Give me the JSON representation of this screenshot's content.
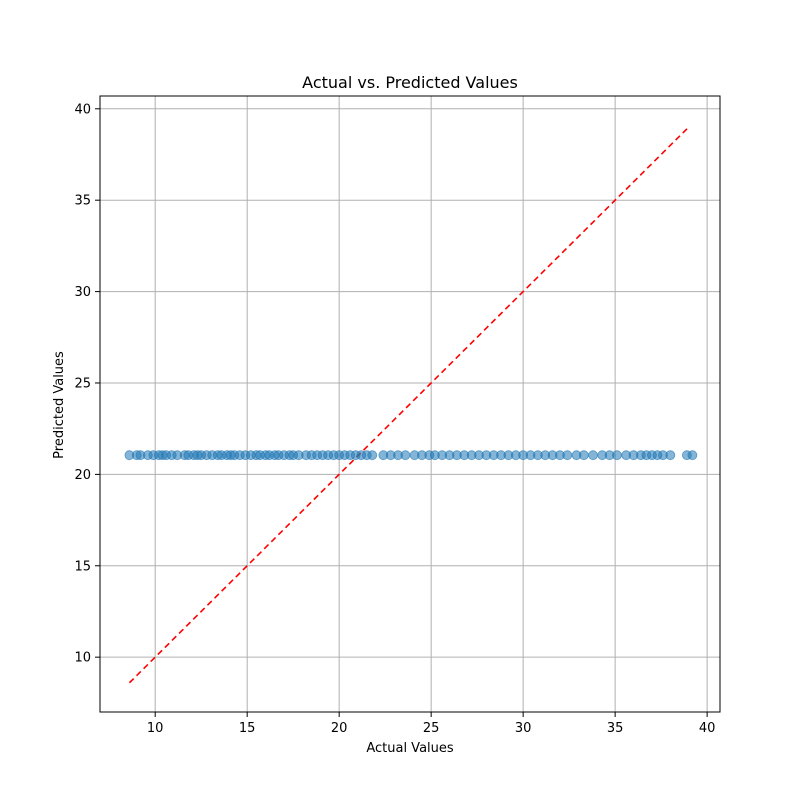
{
  "chart_data": {
    "type": "scatter",
    "title": "Actual vs. Predicted Values",
    "xlabel": "Actual Values",
    "ylabel": "Predicted Values",
    "xlim": [
      7.0,
      40.7
    ],
    "ylim": [
      7.0,
      40.7
    ],
    "xticks": [
      10,
      15,
      20,
      25,
      30,
      35,
      40
    ],
    "yticks": [
      10,
      15,
      20,
      25,
      30,
      35,
      40
    ],
    "grid": true,
    "point_color": "#1f77b4",
    "point_alpha": 0.55,
    "reference_line": {
      "x": [
        8.6,
        39.0
      ],
      "y": [
        8.6,
        39.0
      ],
      "color": "#ff0000",
      "style": "dashed"
    },
    "points": {
      "x": [
        8.6,
        9.0,
        9.2,
        9.6,
        9.9,
        10.2,
        10.4,
        10.6,
        10.9,
        11.2,
        11.6,
        11.8,
        12.1,
        12.3,
        12.5,
        12.8,
        13.1,
        13.4,
        13.6,
        13.9,
        14.1,
        14.3,
        14.6,
        14.9,
        15.2,
        15.5,
        15.7,
        16.0,
        16.2,
        16.5,
        16.7,
        17.0,
        17.3,
        17.5,
        17.8,
        18.2,
        18.5,
        18.8,
        19.1,
        19.4,
        19.7,
        20.0,
        20.3,
        20.6,
        20.9,
        21.2,
        21.5,
        21.8,
        22.4,
        22.8,
        23.2,
        23.6,
        24.1,
        24.5,
        24.9,
        25.2,
        25.6,
        26.0,
        26.4,
        26.8,
        27.2,
        27.6,
        28.0,
        28.4,
        28.8,
        29.2,
        29.6,
        30.0,
        30.4,
        30.8,
        31.2,
        31.6,
        32.0,
        32.4,
        32.9,
        33.3,
        33.8,
        34.3,
        34.7,
        35.1,
        35.6,
        36.0,
        36.4,
        36.7,
        37.0,
        37.3,
        37.6,
        38.0,
        38.9,
        39.2
      ],
      "y": [
        21.05,
        21.05,
        21.05,
        21.05,
        21.05,
        21.05,
        21.05,
        21.05,
        21.05,
        21.05,
        21.05,
        21.05,
        21.05,
        21.05,
        21.05,
        21.05,
        21.05,
        21.05,
        21.05,
        21.05,
        21.05,
        21.05,
        21.05,
        21.05,
        21.05,
        21.05,
        21.05,
        21.05,
        21.05,
        21.05,
        21.05,
        21.05,
        21.05,
        21.05,
        21.05,
        21.05,
        21.05,
        21.05,
        21.05,
        21.05,
        21.05,
        21.05,
        21.05,
        21.05,
        21.05,
        21.05,
        21.05,
        21.05,
        21.05,
        21.05,
        21.05,
        21.05,
        21.05,
        21.05,
        21.05,
        21.05,
        21.05,
        21.05,
        21.05,
        21.05,
        21.05,
        21.05,
        21.05,
        21.05,
        21.05,
        21.05,
        21.05,
        21.05,
        21.05,
        21.05,
        21.05,
        21.05,
        21.05,
        21.05,
        21.05,
        21.05,
        21.05,
        21.05,
        21.05,
        21.05,
        21.05,
        21.05,
        21.05,
        21.05,
        21.05,
        21.05,
        21.05,
        21.05,
        21.05,
        21.05
      ]
    }
  }
}
